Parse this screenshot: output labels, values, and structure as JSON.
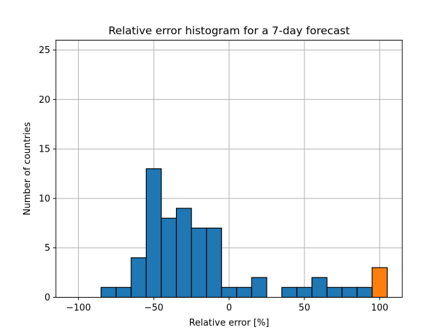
{
  "chart_data": {
    "type": "bar",
    "title": "Relative error histogram for a 7-day forecast",
    "xlabel": "Relative error [%]",
    "ylabel": "Number of countries",
    "xlim": [
      -115,
      115
    ],
    "ylim": [
      0,
      26
    ],
    "xticks": [
      -100,
      -50,
      0,
      50,
      100
    ],
    "xtick_labels": [
      "−100",
      "−50",
      "0",
      "50",
      "100"
    ],
    "yticks": [
      0,
      5,
      10,
      15,
      20,
      25
    ],
    "ytick_labels": [
      "0",
      "5",
      "10",
      "15",
      "20",
      "25"
    ],
    "grid": true,
    "bin_width": 10,
    "bins": [
      {
        "start": -105,
        "end": -95,
        "count": 0,
        "highlight": false
      },
      {
        "start": -95,
        "end": -85,
        "count": 0,
        "highlight": false
      },
      {
        "start": -85,
        "end": -75,
        "count": 1,
        "highlight": false
      },
      {
        "start": -75,
        "end": -65,
        "count": 1,
        "highlight": false
      },
      {
        "start": -65,
        "end": -55,
        "count": 4,
        "highlight": false
      },
      {
        "start": -55,
        "end": -45,
        "count": 13,
        "highlight": false
      },
      {
        "start": -45,
        "end": -35,
        "count": 8,
        "highlight": false
      },
      {
        "start": -35,
        "end": -25,
        "count": 9,
        "highlight": false
      },
      {
        "start": -25,
        "end": -15,
        "count": 7,
        "highlight": false
      },
      {
        "start": -15,
        "end": -5,
        "count": 7,
        "highlight": false
      },
      {
        "start": -5,
        "end": 5,
        "count": 1,
        "highlight": false
      },
      {
        "start": 5,
        "end": 15,
        "count": 1,
        "highlight": false
      },
      {
        "start": 15,
        "end": 25,
        "count": 2,
        "highlight": false
      },
      {
        "start": 25,
        "end": 35,
        "count": 0,
        "highlight": false
      },
      {
        "start": 35,
        "end": 45,
        "count": 1,
        "highlight": false
      },
      {
        "start": 45,
        "end": 55,
        "count": 1,
        "highlight": false
      },
      {
        "start": 55,
        "end": 65,
        "count": 2,
        "highlight": false
      },
      {
        "start": 65,
        "end": 75,
        "count": 1,
        "highlight": false
      },
      {
        "start": 75,
        "end": 85,
        "count": 1,
        "highlight": false
      },
      {
        "start": 85,
        "end": 95,
        "count": 1,
        "highlight": false
      },
      {
        "start": 95,
        "end": 105,
        "count": 3,
        "highlight": true
      }
    ],
    "colors": {
      "bar": "#1f77b4",
      "highlight_bar": "#ff7f0e",
      "edge": "#000000",
      "grid": "#b0b0b0"
    }
  }
}
